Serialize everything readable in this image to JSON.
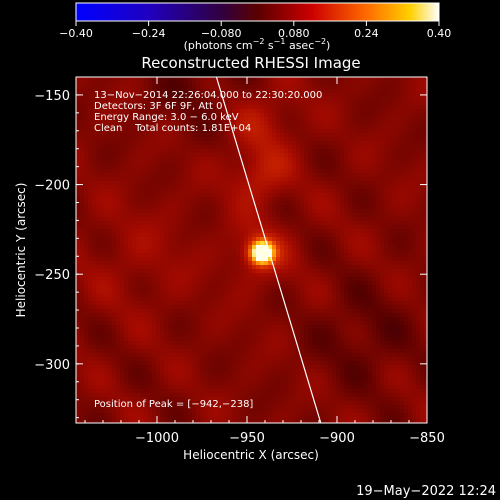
{
  "chart_data": {
    "type": "heatmap",
    "title": "Reconstructed RHESSI Image",
    "xlabel": "Heliocentric X (arcsec)",
    "ylabel": "Heliocentric Y (arcsec)",
    "xlim": [
      -1045,
      -850
    ],
    "ylim": [
      -333,
      -140
    ],
    "x_ticks": [
      -1000,
      -950,
      -900,
      -850
    ],
    "x_tick_labels": [
      "−1000",
      "−950",
      "−900",
      "−850"
    ],
    "y_ticks": [
      -150,
      -200,
      -250,
      -300
    ],
    "y_tick_labels": [
      "−150",
      "−200",
      "−250",
      "−300"
    ],
    "colorbar": {
      "min": -0.4,
      "max": 0.4,
      "ticks": [
        -0.4,
        -0.24,
        -0.08,
        0.08,
        0.24,
        0.4
      ],
      "tick_labels": [
        "−0.40",
        "−0.24",
        "−0.080",
        "0.080",
        "0.24",
        "0.40"
      ],
      "unit_parts": [
        "(photons cm",
        "−2",
        " s",
        "−1",
        " asec",
        "−2",
        ")"
      ]
    },
    "info_lines": [
      "13−Nov−2014 22:26:04.000 to 22:30:20.000",
      "Detectors: 3F 6F 9F, Att 0",
      "Energy Range: 3.0 − 6.0 keV",
      "Clean    Total counts: 1.81E+04"
    ],
    "peak_label": "Position of Peak = [−942,−238]",
    "peak": {
      "x": -942,
      "y": -238
    },
    "limb_points": [
      [
        -967,
        -140
      ],
      [
        -909,
        -333
      ]
    ],
    "timestamp": "19−May−2022 12:24",
    "colors": {
      "background": "#000000",
      "text": "#ffffff",
      "limb": "#ffffff"
    }
  }
}
